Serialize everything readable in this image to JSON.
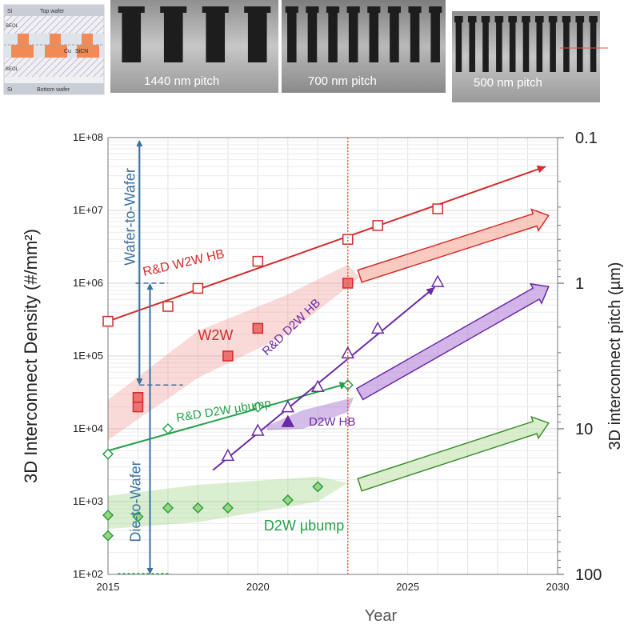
{
  "header": {
    "schematic_labels": {
      "top_si": "Si",
      "top_wafer": "Top wafer",
      "beol_top": "BEOL",
      "cu": "Cu",
      "sicn": "SiCN",
      "beol_bottom": "BEOL",
      "bottom_si": "Si",
      "bottom_wafer": "Bottom wafer"
    },
    "panels": [
      {
        "label": "1440 nm pitch",
        "pillars": 4
      },
      {
        "label": "700 nm pitch",
        "pillars": 8
      },
      {
        "label": "500 nm pitch",
        "pillars": 11
      }
    ]
  },
  "chart_data": {
    "type": "scatter",
    "xlabel": "Year",
    "ylabel": "3D Interconnect Density (#/mm²)",
    "y2label": "3D interconnect pitch (µm)",
    "xlim": [
      2015,
      2030
    ],
    "ylim": [
      100,
      100000000
    ],
    "yscale": "log",
    "grid": true,
    "xticks": [
      "2015",
      "2020",
      "2025",
      "2030"
    ],
    "yticks": [
      {
        "value": 100,
        "label": "1E+02"
      },
      {
        "value": 1000,
        "label": "1E+03"
      },
      {
        "value": 10000,
        "label": "1E+04"
      },
      {
        "value": 100000,
        "label": "1E+05"
      },
      {
        "value": 1000000,
        "label": "1E+06"
      },
      {
        "value": 10000000,
        "label": "1E+07"
      },
      {
        "value": 100000000,
        "label": "1E+08"
      }
    ],
    "y2ticks": [
      {
        "pitch": 0.1,
        "label": "0.1"
      },
      {
        "pitch": 1,
        "label": "1"
      },
      {
        "pitch": 10,
        "label": "10"
      },
      {
        "pitch": 100,
        "label": "100"
      }
    ],
    "reference_year": 2023,
    "range_labels": {
      "wafer_to_wafer": "Wafer-to-Wafer",
      "die_to_wafer": "Die-to-Wafer"
    },
    "series": [
      {
        "name": "R&D W2W HB",
        "color": "#d42b2b",
        "marker": "square-open",
        "x": [
          2015,
          2017,
          2018,
          2020,
          2023,
          2024,
          2026
        ],
        "y": [
          300000,
          480000,
          850000,
          2000000,
          4000000,
          6200000,
          10500000
        ]
      },
      {
        "name": "W2W",
        "color": "#d42b2b",
        "marker": "square-filled",
        "x": [
          2016,
          2016,
          2019,
          2020,
          2023
        ],
        "y": [
          20000,
          27000,
          100000,
          240000,
          1000000
        ]
      },
      {
        "name": "R&D D2W HB",
        "color": "#6a2aa3",
        "marker": "triangle-open",
        "x": [
          2019,
          2020,
          2021,
          2022,
          2023,
          2024,
          2026
        ],
        "y": [
          4300,
          9500,
          20000,
          38000,
          110000,
          240000,
          1050000
        ]
      },
      {
        "name": "D2W HB",
        "color": "#6a2aa3",
        "marker": "triangle-filled",
        "x": [
          2021
        ],
        "y": [
          12500
        ]
      },
      {
        "name": "R&D D2W µbump",
        "color": "#25a04a",
        "marker": "diamond-open",
        "x": [
          2015,
          2017,
          2020,
          2023
        ],
        "y": [
          4500,
          10000,
          20000,
          40000
        ]
      },
      {
        "name": "D2W µbump",
        "color": "#25a04a",
        "marker": "diamond-filled",
        "x": [
          2015,
          2015,
          2016,
          2017,
          2018,
          2019,
          2021,
          2022
        ],
        "y": [
          650,
          340,
          620,
          820,
          820,
          820,
          1050,
          1600
        ]
      }
    ]
  }
}
